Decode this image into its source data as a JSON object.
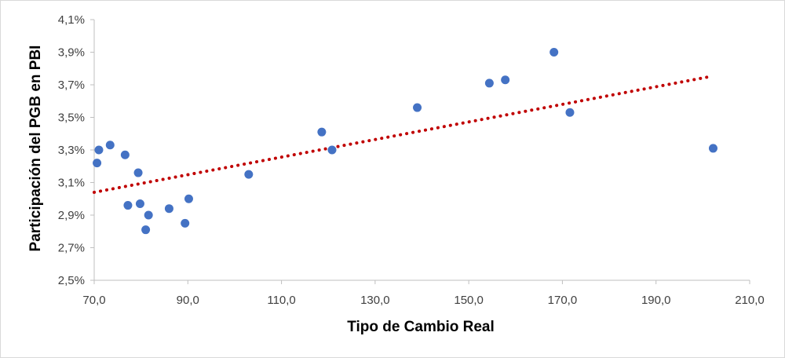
{
  "chart_data": {
    "type": "scatter",
    "title": "",
    "xlabel": "Tipo de Cambio Real",
    "ylabel": "Participación del PGB en PBI",
    "xlim": [
      70,
      210
    ],
    "ylim": [
      2.5,
      4.1
    ],
    "x_ticks": [
      "70,0",
      "90,0",
      "110,0",
      "130,0",
      "150,0",
      "170,0",
      "190,0",
      "210,0"
    ],
    "y_ticks": [
      "2,5%",
      "2,7%",
      "2,9%",
      "3,1%",
      "3,3%",
      "3,5%",
      "3,7%",
      "3,9%",
      "4,1%"
    ],
    "grid": false,
    "legend": "none",
    "point_color": "#4472c4",
    "trendline_color": "#c00000",
    "trendline": {
      "type": "linear",
      "style": "dotted",
      "x": [
        70.0,
        201.5
      ],
      "y": [
        3.04,
        3.75
      ]
    },
    "points": [
      {
        "x": 70.6,
        "y": 3.22
      },
      {
        "x": 71.0,
        "y": 3.3
      },
      {
        "x": 73.4,
        "y": 3.33
      },
      {
        "x": 76.6,
        "y": 3.27
      },
      {
        "x": 77.2,
        "y": 2.96
      },
      {
        "x": 79.4,
        "y": 3.16
      },
      {
        "x": 79.8,
        "y": 2.97
      },
      {
        "x": 81.0,
        "y": 2.81
      },
      {
        "x": 81.6,
        "y": 2.9
      },
      {
        "x": 86.0,
        "y": 2.94
      },
      {
        "x": 89.4,
        "y": 2.85
      },
      {
        "x": 90.2,
        "y": 3.0
      },
      {
        "x": 103.0,
        "y": 3.15
      },
      {
        "x": 118.6,
        "y": 3.41
      },
      {
        "x": 120.8,
        "y": 3.3
      },
      {
        "x": 139.0,
        "y": 3.56
      },
      {
        "x": 154.4,
        "y": 3.71
      },
      {
        "x": 157.8,
        "y": 3.73
      },
      {
        "x": 168.2,
        "y": 3.9
      },
      {
        "x": 171.6,
        "y": 3.53
      },
      {
        "x": 202.2,
        "y": 3.31
      }
    ]
  }
}
